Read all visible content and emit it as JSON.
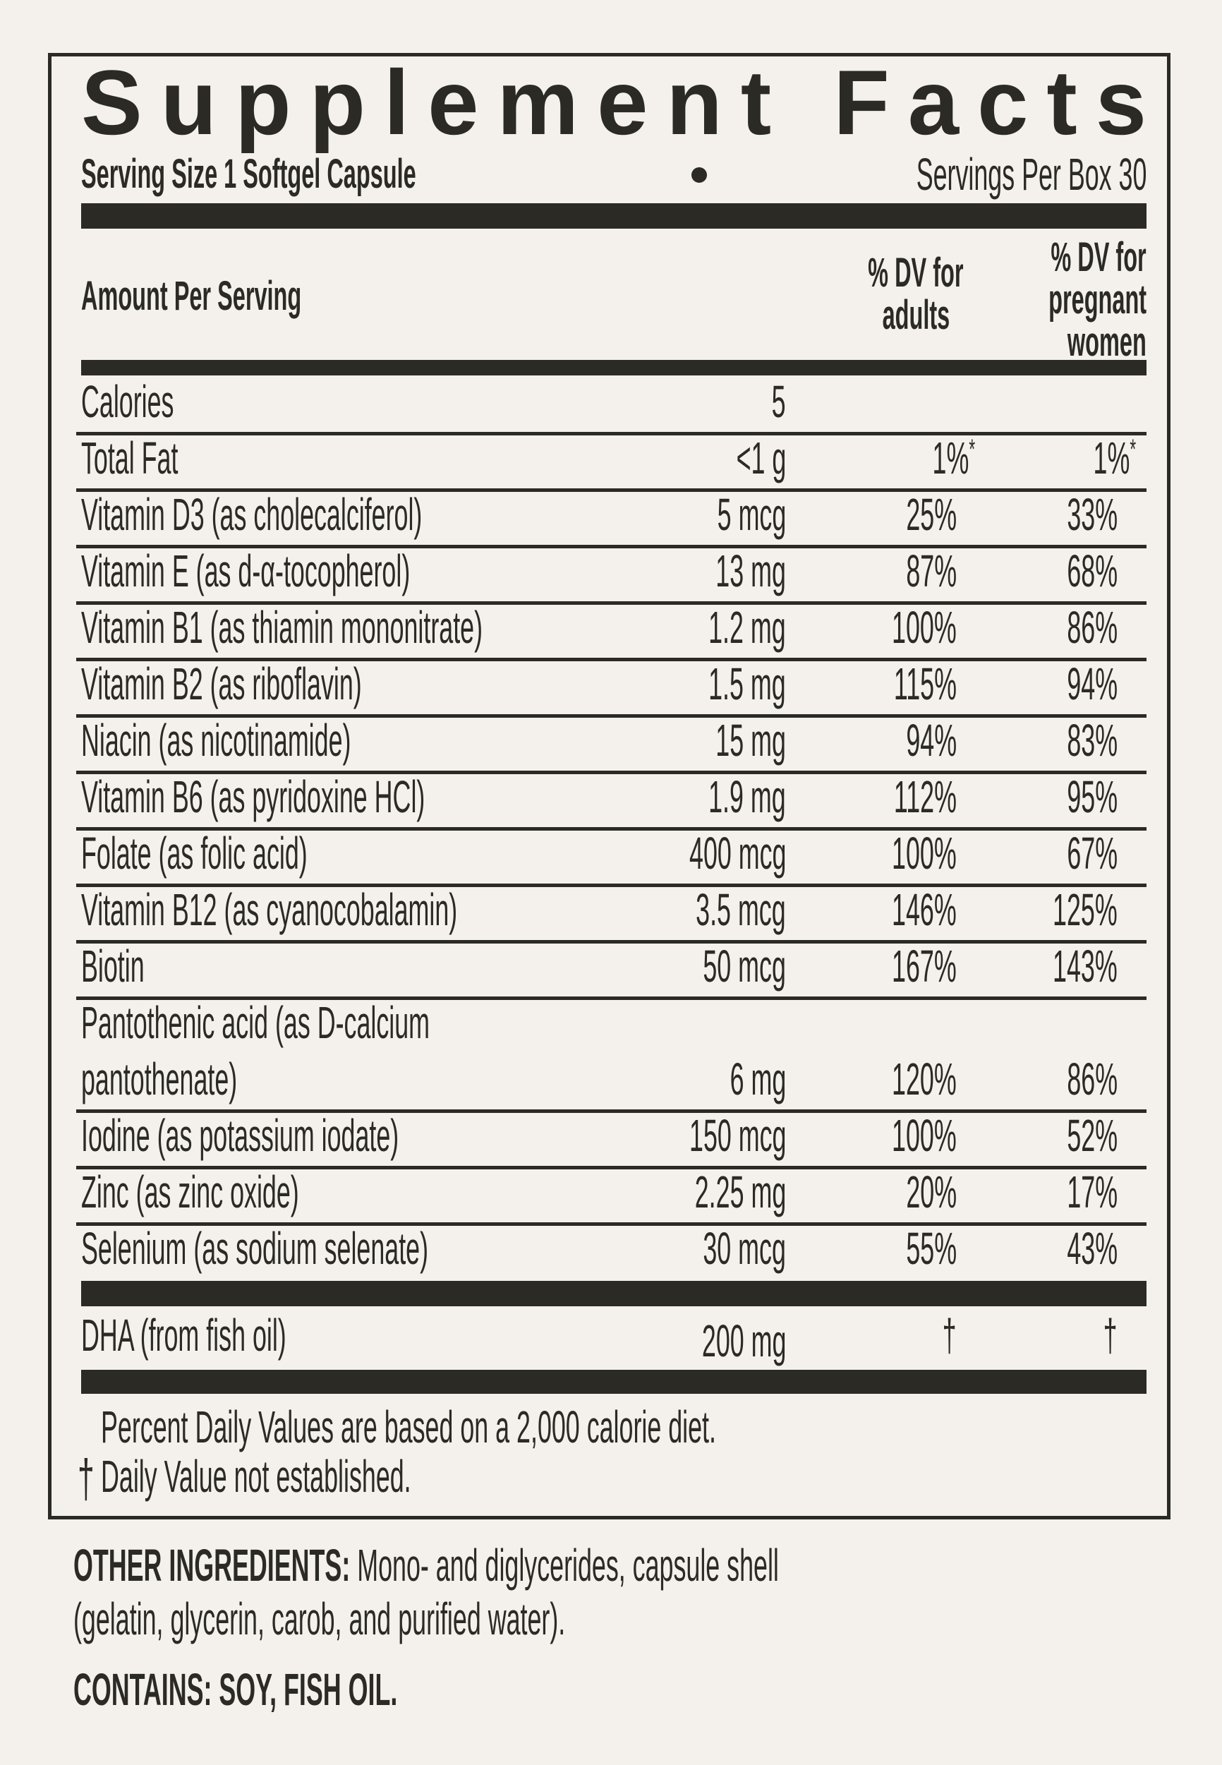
{
  "title": "Supplement Facts",
  "serving_size": "Serving Size 1 Softgel Capsule",
  "separator": "•",
  "servings_per_box": "Servings Per Box 30",
  "header": {
    "amount": "Amount Per Serving",
    "adults_line1": "% DV for",
    "adults_line2": "adults",
    "pregnant_line1": "% DV for",
    "pregnant_line2": "pregnant",
    "pregnant_line3": "women"
  },
  "rows": [
    {
      "name": "Calories",
      "amount": "5",
      "dv_adults": "",
      "dv_pregnant": ""
    },
    {
      "name": "Total Fat",
      "amount": "<1 g",
      "dv_adults": "1%",
      "dv_pregnant": "1%",
      "mark": "*"
    },
    {
      "name": "Vitamin D3 (as cholecalciferol)",
      "amount": "5 mcg",
      "dv_adults": "25%",
      "dv_pregnant": "33%"
    },
    {
      "name": "Vitamin E (as d-α-tocopherol)",
      "amount": "13 mg",
      "dv_adults": "87%",
      "dv_pregnant": "68%"
    },
    {
      "name": "Vitamin B1 (as thiamin mononitrate)",
      "amount": "1.2 mg",
      "dv_adults": "100%",
      "dv_pregnant": "86%"
    },
    {
      "name": "Vitamin B2 (as riboflavin)",
      "amount": "1.5 mg",
      "dv_adults": "115%",
      "dv_pregnant": "94%"
    },
    {
      "name": "Niacin (as nicotinamide)",
      "amount": "15 mg",
      "dv_adults": "94%",
      "dv_pregnant": "83%"
    },
    {
      "name": "Vitamin B6 (as pyridoxine HCl)",
      "amount": "1.9 mg",
      "dv_adults": "112%",
      "dv_pregnant": "95%"
    },
    {
      "name": "Folate (as folic acid)",
      "amount": "400 mcg",
      "dv_adults": "100%",
      "dv_pregnant": "67%"
    },
    {
      "name": "Vitamin B12 (as cyanocobalamin)",
      "amount": "3.5 mcg",
      "dv_adults": "146%",
      "dv_pregnant": "125%"
    },
    {
      "name": "Biotin",
      "amount": "50 mcg",
      "dv_adults": "167%",
      "dv_pregnant": "143%"
    },
    {
      "name": "Pantothenic acid (as D-calcium",
      "name2": "pantothenate)",
      "amount": "6 mg",
      "dv_adults": "120%",
      "dv_pregnant": "86%"
    },
    {
      "name": "Iodine (as potassium iodate)",
      "amount": "150 mcg",
      "dv_adults": "100%",
      "dv_pregnant": "52%"
    },
    {
      "name": "Zinc (as zinc oxide)",
      "amount": "2.25 mg",
      "dv_adults": "20%",
      "dv_pregnant": "17%"
    },
    {
      "name": "Selenium (as sodium selenate)",
      "amount": "30 mcg",
      "dv_adults": "55%",
      "dv_pregnant": "43%"
    }
  ],
  "dha": {
    "name": "DHA (from fish oil)",
    "amount": "200 mg",
    "dv_adults": "†",
    "dv_pregnant": "†"
  },
  "footnotes": {
    "percent": "Percent Daily Values are based on a 2,000 calorie diet.",
    "dagger": "†",
    "not_established": "Daily Value not established."
  },
  "other_ingredients": {
    "label": "OTHER INGREDIENTS:",
    "text1": "Mono- and diglycerides, capsule shell",
    "text2": "(gelatin, glycerin, carob, and purified water)."
  },
  "contains": "CONTAINS: SOY, FISH OIL.",
  "colors": {
    "ink": "#2b2a25",
    "background": "#f4f0eb"
  }
}
